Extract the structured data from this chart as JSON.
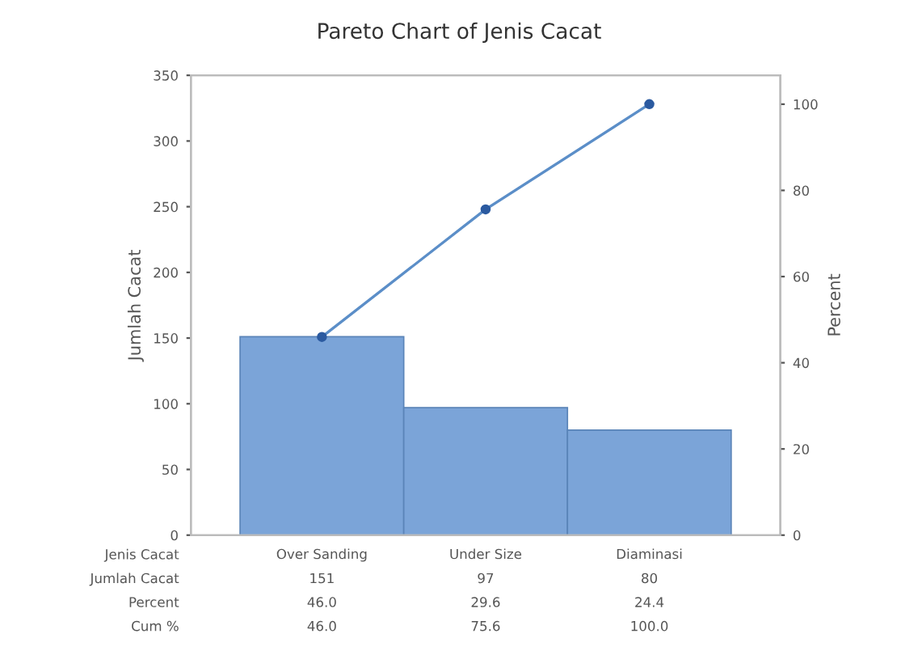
{
  "chart_data": {
    "type": "bar",
    "title": "Pareto Chart of Jenis Cacat",
    "xlabel": "Jenis Cacat",
    "ylabel": "Jumlah Cacat",
    "y2label": "Percent",
    "categories": [
      "Over Sanding",
      "Under Size",
      "Diaminasi"
    ],
    "series": [
      {
        "color": "#7ba4d8",
        "values": [
          151,
          97,
          80
        ],
        "value_labels": [
          "151",
          "97",
          "80"
        ]
      },
      {
        "type": "line",
        "axis": "y2",
        "color": "#5b8ec8",
        "marker": "circle",
        "values": [
          46.0,
          75.6,
          100.0
        ],
        "value_labels": [
          "46.0",
          "75.6",
          "100.0"
        ]
      }
    ],
    "annotations": [
      "Jumlah Cacat",
      "Percent",
      "Cum %",
      "46.0",
      "29.6",
      "24.4"
    ],
    "ylim": [
      0,
      350
    ],
    "yticks": [
      0,
      50,
      100,
      150,
      200,
      250,
      300,
      350
    ],
    "y2lim": [
      0,
      106.7
    ],
    "y2ticks": [
      0,
      20,
      40,
      60,
      80,
      100
    ],
    "legend": false
  }
}
